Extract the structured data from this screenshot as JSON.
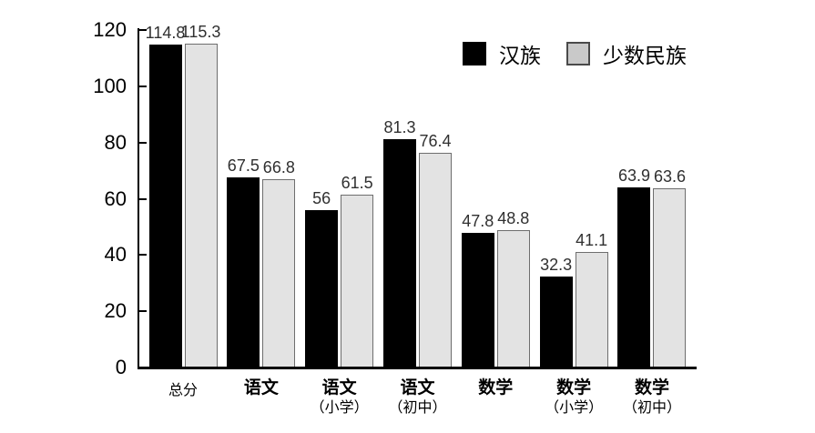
{
  "chart_data": {
    "type": "bar",
    "title": "",
    "xlabel": "",
    "ylabel": "",
    "ylim": [
      0,
      120
    ],
    "yticks": [
      0,
      20,
      40,
      60,
      80,
      100,
      120
    ],
    "grid": false,
    "legend_position": "top-right",
    "value_labels_shown": true,
    "categories": [
      {
        "label": "总分",
        "sub": "",
        "bold": false
      },
      {
        "label": "语文",
        "sub": "",
        "bold": true
      },
      {
        "label": "语文",
        "sub": "（小学）",
        "bold": true
      },
      {
        "label": "语文",
        "sub": "（初中）",
        "bold": true
      },
      {
        "label": "数学",
        "sub": "",
        "bold": true
      },
      {
        "label": "数学",
        "sub": "（小学）",
        "bold": true
      },
      {
        "label": "数学",
        "sub": "（初中）",
        "bold": true
      }
    ],
    "series": [
      {
        "name": "汉族",
        "fill": "#000000",
        "border": "#000000",
        "legend_swatch": "#000000",
        "values": [
          114.8,
          67.5,
          56,
          81.3,
          47.8,
          32.3,
          63.9
        ]
      },
      {
        "name": "少数民族",
        "fill": "#e3e3e3",
        "border": "#6e6e6e",
        "legend_swatch": "#c9c9c9",
        "values": [
          115.3,
          66.8,
          61.5,
          76.4,
          48.8,
          41.1,
          63.6
        ]
      }
    ]
  },
  "colors": {
    "axis": "#000000",
    "tick_label": "#000000",
    "value_label": "#303030",
    "category_label": "#000000",
    "bar_black": "#000000",
    "bar_gray": "#e3e3e3",
    "legend_gray_swatch": "#c9c9c9",
    "background": "#ffffff"
  }
}
